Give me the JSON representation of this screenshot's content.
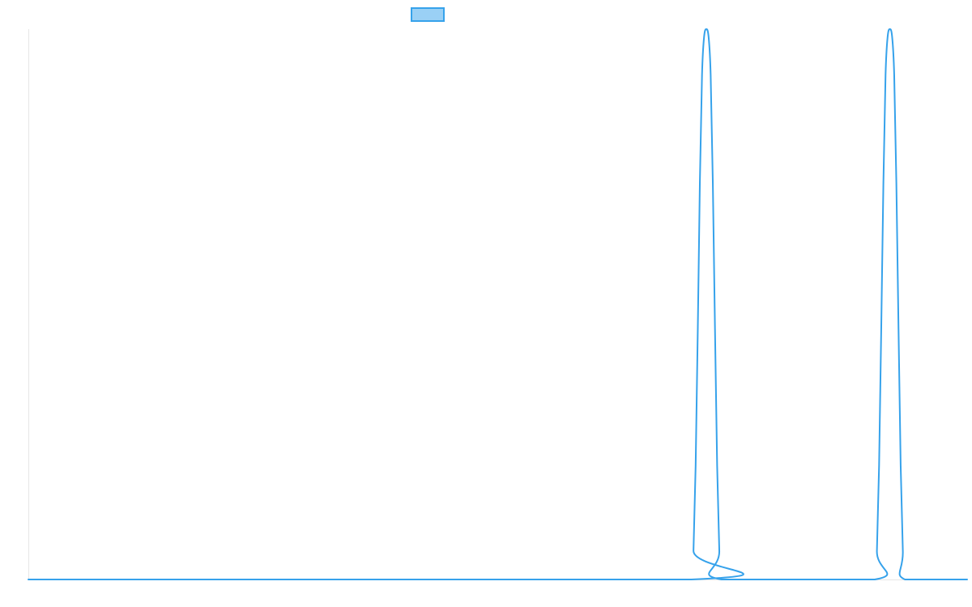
{
  "chart_data": {
    "type": "line",
    "title": "",
    "xlabel": "",
    "ylabel": "",
    "x_range": [
      0,
      1
    ],
    "ylim": [
      0,
      1
    ],
    "grid": false,
    "legend": {
      "position": "top-center",
      "entries": [
        ""
      ]
    },
    "series": [
      {
        "color": "#36a2eb",
        "fill": "#9ad0f5",
        "points": [
          [
            0,
            0
          ],
          [
            0.7062,
            0
          ],
          [
            0.7085,
            0.0523
          ],
          [
            0.7108,
            0.2069
          ],
          [
            0.7131,
            0.4553
          ],
          [
            0.7153,
            0.7213
          ],
          [
            0.7176,
            0.9173
          ],
          [
            0.7199,
            0.9877
          ],
          [
            0.7222,
            1.0
          ],
          [
            0.7245,
            0.9877
          ],
          [
            0.7268,
            0.9173
          ],
          [
            0.7291,
            0.7213
          ],
          [
            0.7314,
            0.4553
          ],
          [
            0.7337,
            0.2069
          ],
          [
            0.736,
            0.0523
          ],
          [
            0.7383,
            0
          ],
          [
            0.9016,
            0
          ],
          [
            0.9039,
            0.0523
          ],
          [
            0.9062,
            0.2069
          ],
          [
            0.9085,
            0.4553
          ],
          [
            0.9108,
            0.7213
          ],
          [
            0.9131,
            0.9173
          ],
          [
            0.9154,
            0.9877
          ],
          [
            0.9177,
            1.0
          ],
          [
            0.92,
            0.9877
          ],
          [
            0.9223,
            0.9173
          ],
          [
            0.9246,
            0.7213
          ],
          [
            0.9269,
            0.4553
          ],
          [
            0.9292,
            0.2069
          ],
          [
            0.9315,
            0.0523
          ],
          [
            0.9338,
            0
          ],
          [
            1,
            0
          ]
        ]
      }
    ]
  }
}
